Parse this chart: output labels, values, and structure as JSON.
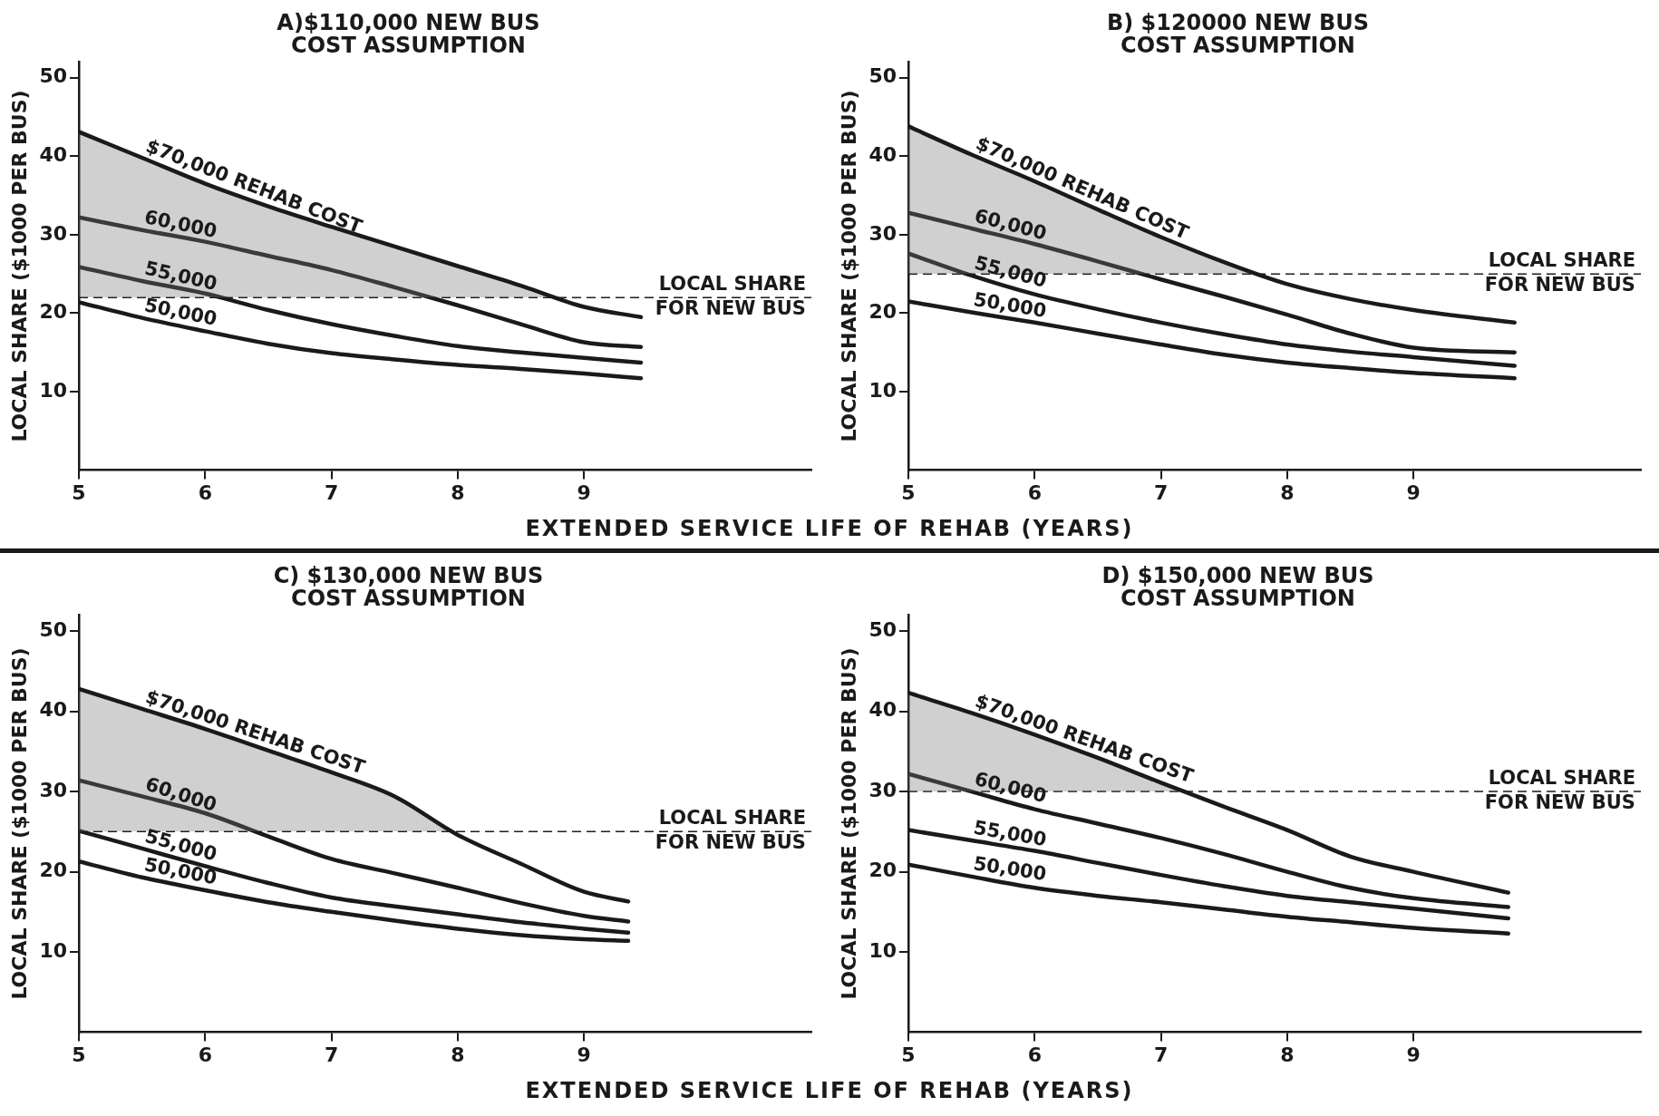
{
  "chart_data": [
    {
      "type": "line",
      "title": "A)$110,000 NEW BUS\nCOST ASSUMPTION",
      "xlabel": "EXTENDED SERVICE LIFE OF REHAB (YEARS)",
      "ylabel": "LOCAL SHARE ($1000 PER BUS)",
      "xlim": [
        5,
        10.8
      ],
      "xticks": [
        5,
        6,
        7,
        8,
        9
      ],
      "ylim": [
        0,
        52
      ],
      "yticks": [
        10,
        20,
        30,
        40,
        50
      ],
      "grid": false,
      "legend": false,
      "marker": "none",
      "line_style": "solid",
      "series": [
        {
          "name": "$70,000 REHAB COST",
          "color": "#1a1a1a",
          "x": [
            5,
            5.5,
            6,
            6.5,
            7,
            7.5,
            8,
            8.5,
            9,
            9.45
          ],
          "values": [
            43.1,
            39.8,
            36.5,
            33.6,
            31.0,
            28.5,
            26.0,
            23.5,
            20.8,
            19.5
          ]
        },
        {
          "name": "60,000",
          "color": "#1a1a1a",
          "x": [
            5,
            5.5,
            6,
            6.5,
            7,
            7.5,
            8,
            8.5,
            9,
            9.45
          ],
          "values": [
            32.2,
            30.6,
            29.1,
            27.3,
            25.5,
            23.3,
            21.0,
            18.6,
            16.3,
            15.7
          ]
        },
        {
          "name": "55,000",
          "color": "#1a1a1a",
          "x": [
            5,
            5.5,
            6,
            6.5,
            7,
            7.5,
            8,
            8.5,
            9,
            9.45
          ],
          "values": [
            25.9,
            24.1,
            22.5,
            20.4,
            18.6,
            17.1,
            15.8,
            15.0,
            14.3,
            13.7
          ]
        },
        {
          "name": "50,000",
          "color": "#1a1a1a",
          "x": [
            5,
            5.5,
            6,
            6.5,
            7,
            7.5,
            8,
            8.5,
            9,
            9.45
          ],
          "values": [
            21.4,
            19.4,
            17.7,
            16.1,
            14.9,
            14.1,
            13.4,
            12.9,
            12.3,
            11.7
          ]
        }
      ],
      "ref_lines": [
        {
          "axis": "y",
          "value": 22,
          "label": "LOCAL SHARE FOR NEW BUS",
          "color": "#1a1a1a",
          "line_style": "dashed"
        }
      ]
    },
    {
      "type": "line",
      "title": "B) $120000 NEW BUS\nCOST ASSUMPTION",
      "ylabel": "LOCAL SHARE ($1000 PER BUS)",
      "xlim": [
        5,
        10.8
      ],
      "xticks": [
        5,
        6,
        7,
        8,
        9
      ],
      "ylim": [
        0,
        52
      ],
      "yticks": [
        10,
        20,
        30,
        40,
        50
      ],
      "grid": false,
      "legend": false,
      "marker": "none",
      "line_style": "solid",
      "series": [
        {
          "name": "$70,000 REHAB COST",
          "color": "#1a1a1a",
          "x": [
            5,
            5.5,
            6,
            6.5,
            7,
            7.5,
            8,
            8.5,
            9,
            9.8
          ],
          "values": [
            43.8,
            40.2,
            36.8,
            33.2,
            29.7,
            26.5,
            23.7,
            21.8,
            20.4,
            18.8
          ]
        },
        {
          "name": "60,000",
          "color": "#1a1a1a",
          "x": [
            5,
            5.5,
            6,
            6.5,
            7,
            7.5,
            8,
            8.5,
            9,
            9.8
          ],
          "values": [
            32.8,
            30.8,
            28.8,
            26.6,
            24.3,
            22.1,
            19.8,
            17.4,
            15.6,
            15.0
          ]
        },
        {
          "name": "55,000",
          "color": "#1a1a1a",
          "x": [
            5,
            5.5,
            6,
            6.5,
            7,
            7.5,
            8,
            8.5,
            9,
            9.8
          ],
          "values": [
            27.6,
            24.8,
            22.4,
            20.5,
            18.8,
            17.3,
            16.0,
            15.1,
            14.4,
            13.3
          ]
        },
        {
          "name": "50,000",
          "color": "#1a1a1a",
          "x": [
            5,
            5.5,
            6,
            6.5,
            7,
            7.5,
            8,
            8.5,
            9,
            9.8
          ],
          "values": [
            21.5,
            20.1,
            18.8,
            17.4,
            16.0,
            14.7,
            13.7,
            13.0,
            12.4,
            11.7
          ]
        }
      ],
      "ref_lines": [
        {
          "axis": "y",
          "value": 25,
          "label": "LOCAL SHARE FOR NEW BUS",
          "color": "#1a1a1a",
          "line_style": "dashed"
        }
      ]
    },
    {
      "type": "line",
      "title": "C) $130,000 NEW BUS\nCOST ASSUMPTION",
      "xlabel": "EXTENDED SERVICE LIFE OF REHAB (YEARS)",
      "ylabel": "LOCAL SHARE ($1000 PER BUS)",
      "xlim": [
        5,
        10.8
      ],
      "xticks": [
        5,
        6,
        7,
        8,
        9
      ],
      "ylim": [
        0,
        52
      ],
      "yticks": [
        10,
        20,
        30,
        40,
        50
      ],
      "grid": false,
      "legend": false,
      "marker": "none",
      "line_style": "solid",
      "series": [
        {
          "name": "$70,000 REHAB COST",
          "color": "#1a1a1a",
          "x": [
            5,
            5.5,
            6,
            6.5,
            7,
            7.5,
            8,
            8.5,
            9,
            9.35
          ],
          "values": [
            42.8,
            40.3,
            37.8,
            35.1,
            32.4,
            29.4,
            24.6,
            21.0,
            17.5,
            16.3
          ]
        },
        {
          "name": "60,000",
          "color": "#1a1a1a",
          "x": [
            5,
            5.5,
            6,
            6.5,
            7,
            7.5,
            8,
            8.5,
            9,
            9.35
          ],
          "values": [
            31.4,
            29.4,
            27.3,
            24.4,
            21.6,
            19.8,
            18.0,
            16.1,
            14.5,
            13.8
          ]
        },
        {
          "name": "55,000",
          "color": "#1a1a1a",
          "x": [
            5,
            5.5,
            6,
            6.5,
            7,
            7.5,
            8,
            8.5,
            9,
            9.35
          ],
          "values": [
            25.1,
            22.9,
            20.7,
            18.6,
            16.8,
            15.7,
            14.7,
            13.7,
            12.9,
            12.4
          ]
        },
        {
          "name": "50,000",
          "color": "#1a1a1a",
          "x": [
            5,
            5.5,
            6,
            6.5,
            7,
            7.5,
            8,
            8.5,
            9,
            9.35
          ],
          "values": [
            21.3,
            19.3,
            17.7,
            16.2,
            15.0,
            13.9,
            12.9,
            12.1,
            11.6,
            11.4
          ]
        }
      ],
      "ref_lines": [
        {
          "axis": "y",
          "value": 25,
          "label": "LOCAL SHARE FOR NEW BUS",
          "color": "#1a1a1a",
          "line_style": "dashed"
        }
      ]
    },
    {
      "type": "line",
      "title": "D) $150,000 NEW BUS\nCOST ASSUMPTION",
      "ylabel": "LOCAL SHARE ($1000 PER BUS)",
      "xlim": [
        5,
        10.8
      ],
      "xticks": [
        5,
        6,
        7,
        8,
        9
      ],
      "ylim": [
        0,
        52
      ],
      "yticks": [
        10,
        20,
        30,
        40,
        50
      ],
      "grid": false,
      "legend": false,
      "marker": "none",
      "line_style": "solid",
      "series": [
        {
          "name": "$70,000 REHAB COST",
          "color": "#1a1a1a",
          "x": [
            5,
            5.5,
            6,
            6.5,
            7,
            7.5,
            8,
            8.5,
            9,
            9.75
          ],
          "values": [
            42.3,
            39.8,
            37.1,
            34.2,
            31.1,
            28.1,
            25.2,
            21.9,
            20.0,
            17.4
          ]
        },
        {
          "name": "60,000",
          "color": "#1a1a1a",
          "x": [
            5,
            5.5,
            6,
            6.5,
            7,
            7.5,
            8,
            8.5,
            9,
            9.75
          ],
          "values": [
            32.2,
            30.0,
            27.8,
            26.0,
            24.2,
            22.2,
            20.0,
            18.0,
            16.7,
            15.6
          ]
        },
        {
          "name": "55,000",
          "color": "#1a1a1a",
          "x": [
            5,
            5.5,
            6,
            6.5,
            7,
            7.5,
            8,
            8.5,
            9,
            9.75
          ],
          "values": [
            25.2,
            23.9,
            22.6,
            21.1,
            19.6,
            18.2,
            17.0,
            16.2,
            15.4,
            14.2
          ]
        },
        {
          "name": "50,000",
          "color": "#1a1a1a",
          "x": [
            5,
            5.5,
            6,
            6.5,
            7,
            7.5,
            8,
            8.5,
            9,
            9.75
          ],
          "values": [
            20.9,
            19.4,
            18.0,
            17.0,
            16.2,
            15.3,
            14.4,
            13.7,
            13.0,
            12.3
          ]
        }
      ],
      "ref_lines": [
        {
          "axis": "y",
          "value": 30,
          "label": "LOCAL SHARE FOR NEW BUS",
          "color": "#1a1a1a",
          "line_style": "dashed"
        }
      ]
    }
  ]
}
